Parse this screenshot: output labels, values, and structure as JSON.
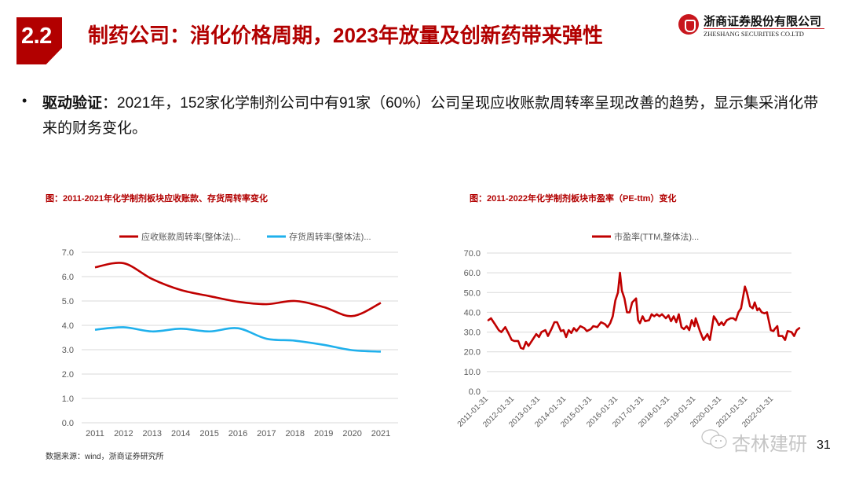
{
  "header": {
    "section_number": "2.2",
    "title": "制药公司：消化价格周期，2023年放量及创新药带来弹性",
    "logo_cn": "浙商证券股份有限公司",
    "logo_en": "ZHESHANG SECURITIES CO.LTD"
  },
  "body": {
    "bullet_label": "驱动验证",
    "bullet_text": "：2021年，152家化学制剂公司中有91家（60%）公司呈现应收账款周转率呈现改善的趋势，显示集采消化带来的财务变化。"
  },
  "footer": {
    "source": "数据来源：wind，浙商证券研究所",
    "page_number": "31",
    "watermark": "杏林建研"
  },
  "colors": {
    "brand_red": "#b20000",
    "series_red": "#c00000",
    "series_blue": "#1fb0ec",
    "grid": "#d9d9d9"
  },
  "chart_data": [
    {
      "type": "line",
      "title": "图：2011-2021年化学制剂板块应收账款、存货周转率变化",
      "xlabel": "",
      "ylabel": "",
      "categories": [
        "2011",
        "2012",
        "2013",
        "2014",
        "2015",
        "2016",
        "2017",
        "2018",
        "2019",
        "2020",
        "2021"
      ],
      "series": [
        {
          "name": "应收账款周转率(整体法)...",
          "color": "#c00000",
          "values": [
            6.38,
            6.55,
            5.9,
            5.45,
            5.2,
            4.97,
            4.87,
            5.0,
            4.75,
            4.38,
            4.92
          ]
        },
        {
          "name": "存货周转率(整体法)...",
          "color": "#1fb0ec",
          "values": [
            3.82,
            3.92,
            3.75,
            3.86,
            3.75,
            3.88,
            3.45,
            3.37,
            3.2,
            2.98,
            2.92
          ]
        }
      ],
      "ylim": [
        0,
        7
      ],
      "yticks": [
        "0.0",
        "1.0",
        "2.0",
        "3.0",
        "4.0",
        "5.0",
        "6.0",
        "7.0"
      ],
      "grid": true,
      "legend": "top-center"
    },
    {
      "type": "line",
      "title": "图：2011-2022年化学制剂板块市盈率（PE-ttm）变化",
      "xlabel": "",
      "ylabel": "",
      "x_tick_labels": [
        "2011-01-31",
        "2012-01-31",
        "2013-01-31",
        "2014-01-31",
        "2015-01-31",
        "2016-01-31",
        "2017-01-31",
        "2018-01-31",
        "2019-01-31",
        "2020-01-31",
        "2021-01-31",
        "2022-01-31"
      ],
      "x_start": 2011.0,
      "x_end": 2022.7,
      "series": [
        {
          "name": "市盈率(TTM,整体法)...",
          "color": "#c00000",
          "points": [
            [
              2011.0,
              36
            ],
            [
              2011.1,
              37
            ],
            [
              2011.25,
              34
            ],
            [
              2011.4,
              31
            ],
            [
              2011.5,
              30
            ],
            [
              2011.65,
              32.5
            ],
            [
              2011.75,
              30
            ],
            [
              2011.9,
              26
            ],
            [
              2012.0,
              25.5
            ],
            [
              2012.15,
              25.5
            ],
            [
              2012.25,
              22
            ],
            [
              2012.35,
              21.5
            ],
            [
              2012.45,
              25
            ],
            [
              2012.55,
              23
            ],
            [
              2012.7,
              26
            ],
            [
              2012.85,
              29
            ],
            [
              2012.95,
              27.5
            ],
            [
              2013.05,
              30
            ],
            [
              2013.2,
              31
            ],
            [
              2013.3,
              28
            ],
            [
              2013.45,
              32
            ],
            [
              2013.55,
              35
            ],
            [
              2013.65,
              35
            ],
            [
              2013.8,
              30.5
            ],
            [
              2013.9,
              31
            ],
            [
              2014.0,
              27.5
            ],
            [
              2014.1,
              31
            ],
            [
              2014.2,
              29.5
            ],
            [
              2014.3,
              32
            ],
            [
              2014.4,
              30.5
            ],
            [
              2014.55,
              33
            ],
            [
              2014.7,
              32
            ],
            [
              2014.8,
              30.5
            ],
            [
              2014.95,
              31.5
            ],
            [
              2015.05,
              33
            ],
            [
              2015.2,
              32.5
            ],
            [
              2015.35,
              35
            ],
            [
              2015.5,
              34
            ],
            [
              2015.6,
              32.5
            ],
            [
              2015.7,
              34.5
            ],
            [
              2015.8,
              38
            ],
            [
              2015.9,
              46
            ],
            [
              2016.0,
              50
            ],
            [
              2016.08,
              60
            ],
            [
              2016.15,
              51
            ],
            [
              2016.25,
              47
            ],
            [
              2016.35,
              40
            ],
            [
              2016.45,
              40
            ],
            [
              2016.55,
              45
            ],
            [
              2016.7,
              47
            ],
            [
              2016.78,
              36
            ],
            [
              2016.85,
              34.5
            ],
            [
              2016.95,
              38
            ],
            [
              2017.05,
              35.5
            ],
            [
              2017.2,
              36
            ],
            [
              2017.3,
              39
            ],
            [
              2017.4,
              38
            ],
            [
              2017.5,
              39
            ],
            [
              2017.6,
              38
            ],
            [
              2017.7,
              39
            ],
            [
              2017.85,
              37
            ],
            [
              2017.95,
              38.5
            ],
            [
              2018.05,
              35.5
            ],
            [
              2018.15,
              38
            ],
            [
              2018.25,
              35
            ],
            [
              2018.35,
              39
            ],
            [
              2018.45,
              32.5
            ],
            [
              2018.55,
              31.5
            ],
            [
              2018.65,
              33
            ],
            [
              2018.75,
              31
            ],
            [
              2018.85,
              36
            ],
            [
              2018.95,
              33
            ],
            [
              2019.0,
              37
            ],
            [
              2019.15,
              31
            ],
            [
              2019.3,
              26
            ],
            [
              2019.45,
              29
            ],
            [
              2019.55,
              26
            ],
            [
              2019.7,
              38
            ],
            [
              2019.8,
              36
            ],
            [
              2019.9,
              33.5
            ],
            [
              2020.0,
              35
            ],
            [
              2020.08,
              33.5
            ],
            [
              2020.2,
              36
            ],
            [
              2020.35,
              37
            ],
            [
              2020.45,
              37
            ],
            [
              2020.55,
              36
            ],
            [
              2020.65,
              40
            ],
            [
              2020.75,
              42
            ],
            [
              2020.9,
              53
            ],
            [
              2020.98,
              50
            ],
            [
              2021.1,
              43
            ],
            [
              2021.2,
              42
            ],
            [
              2021.28,
              45
            ],
            [
              2021.38,
              41
            ],
            [
              2021.45,
              42
            ],
            [
              2021.55,
              40
            ],
            [
              2021.65,
              39.5
            ],
            [
              2021.75,
              40
            ],
            [
              2021.9,
              31
            ],
            [
              2022.0,
              30.5
            ],
            [
              2022.05,
              31.5
            ],
            [
              2022.15,
              33
            ],
            [
              2022.2,
              28
            ],
            [
              2022.35,
              28
            ],
            [
              2022.45,
              26
            ],
            [
              2022.55,
              30.5
            ],
            [
              2022.7,
              30
            ],
            [
              2022.8,
              28
            ],
            [
              2022.9,
              31
            ],
            [
              2023.0,
              32
            ]
          ]
        }
      ],
      "ylim": [
        0,
        70
      ],
      "yticks": [
        "0.0",
        "10.0",
        "20.0",
        "30.0",
        "40.0",
        "50.0",
        "60.0",
        "70.0"
      ],
      "grid": true,
      "legend": "top-center"
    }
  ]
}
